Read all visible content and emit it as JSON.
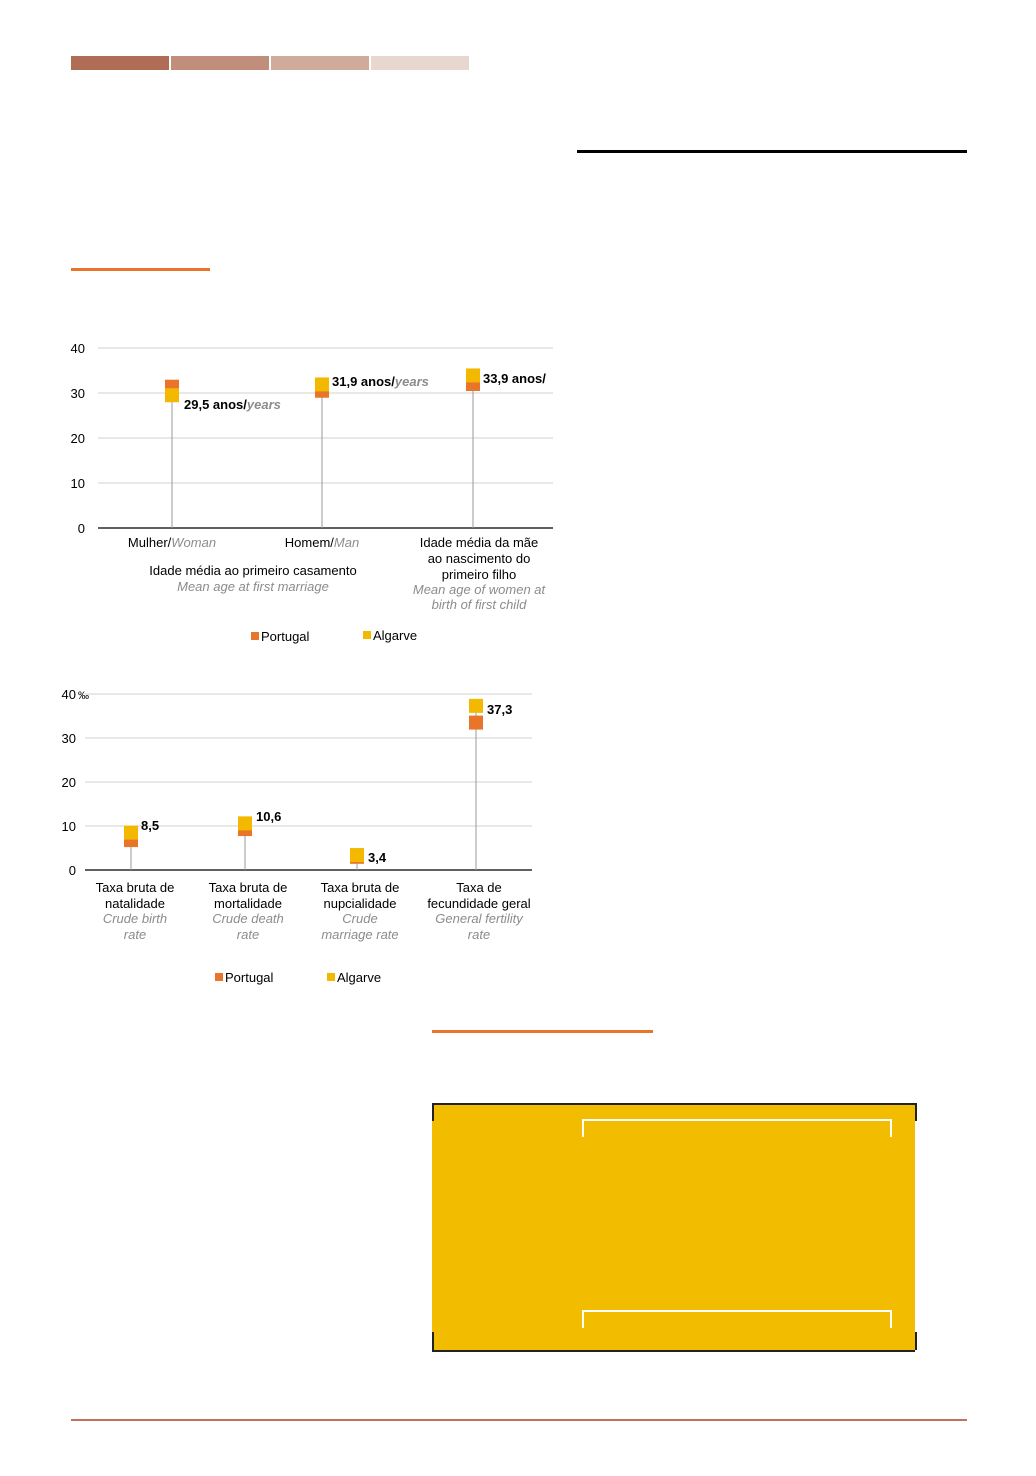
{
  "colors": {
    "header_segments": [
      "#b06d55",
      "#c08e7a",
      "#d0ab9c",
      "#e8d7cf"
    ],
    "orange_rule": "#e8752a",
    "portugal": "#e8752a",
    "algarve": "#f2b900",
    "yellow_box": "#f2bd00",
    "footer_rule": "#c0715a"
  },
  "chart_data": [
    {
      "type": "scatter",
      "ylim": [
        0,
        40
      ],
      "yticks": [
        "0",
        "10",
        "20",
        "30",
        "40"
      ],
      "grid": true,
      "legend_position": "bottom",
      "groups": [
        {
          "lines": [
            "Idade média ao primeiro casamento"
          ],
          "lines_en": [
            "Mean age at first marriage"
          ]
        },
        {
          "lines": [
            "Idade média da mãe",
            "ao nascimento do",
            "primeiro filho"
          ],
          "lines_en": [
            "Mean age of women at",
            "birth of first child"
          ]
        }
      ],
      "categories": [
        {
          "pt": "Mulher/",
          "en": "Woman"
        },
        {
          "pt": "Homem/",
          "en": "Man"
        },
        {
          "pt": "",
          "en": ""
        }
      ],
      "series": [
        {
          "name": "Portugal",
          "values": [
            31.4,
            30.5,
            32.0
          ]
        },
        {
          "name": "Algarve",
          "values": [
            29.5,
            31.9,
            33.9
          ]
        }
      ],
      "data_labels": [
        {
          "value": "29,5 anos/",
          "unit": "years"
        },
        {
          "value": "31,9 anos/",
          "unit": "years"
        },
        {
          "value": "33,9 anos/",
          "unit": ""
        }
      ]
    },
    {
      "type": "scatter",
      "ylim": [
        0,
        40
      ],
      "yticks": [
        "0",
        "10",
        "20",
        "30",
        "40"
      ],
      "top_tick_unit": "‰",
      "grid": true,
      "legend_position": "bottom",
      "categories": [
        {
          "pt": [
            "Taxa bruta de",
            "natalidade"
          ],
          "en": [
            "Crude birth",
            "rate"
          ]
        },
        {
          "pt": [
            "Taxa bruta de",
            "mortalidade"
          ],
          "en": [
            "Crude death",
            "rate"
          ]
        },
        {
          "pt": [
            "Taxa bruta de",
            "nupcialidade"
          ],
          "en": [
            "Crude",
            "marriage rate"
          ]
        },
        {
          "pt": [
            "Taxa de",
            "fecundidade geral"
          ],
          "en": [
            "General fertility",
            "rate"
          ]
        }
      ],
      "series": [
        {
          "name": "Portugal",
          "values": [
            6.8,
            9.3,
            3.0,
            33.5
          ]
        },
        {
          "name": "Algarve",
          "values": [
            8.5,
            10.6,
            3.4,
            37.3
          ]
        }
      ],
      "data_labels": [
        "8,5",
        "10,6",
        "3,4",
        "37,3"
      ]
    }
  ]
}
